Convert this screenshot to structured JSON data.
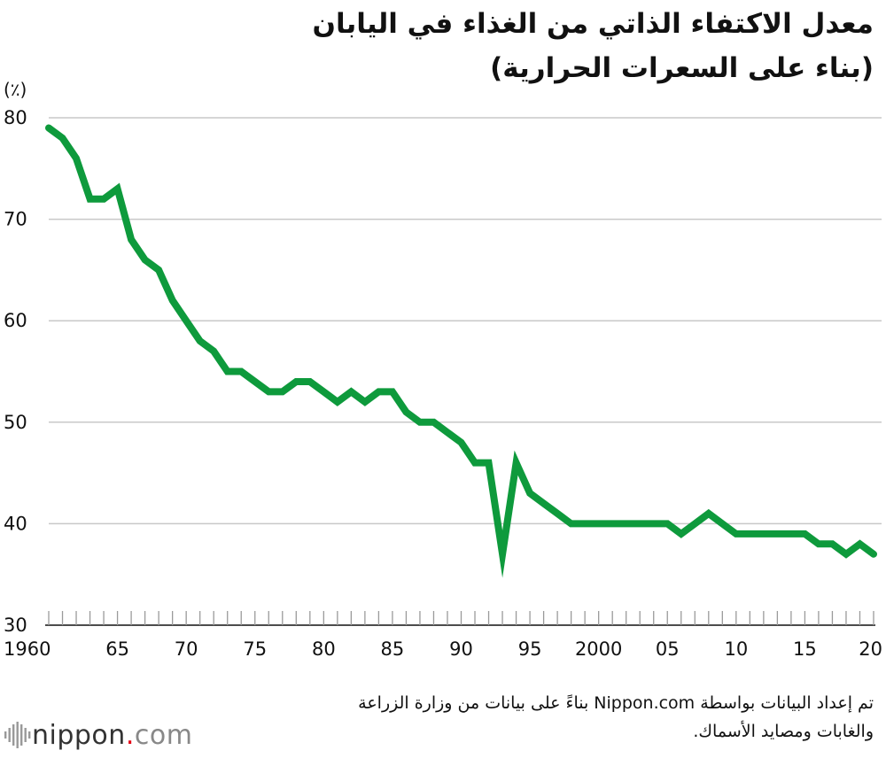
{
  "title": {
    "line1": "معدل الاكتفاء الذاتي من الغذاء في اليابان",
    "line2": "(بناء على السعرات الحرارية)"
  },
  "chart_data": {
    "type": "line",
    "unit_label": "(٪)",
    "ylim": [
      30,
      80
    ],
    "yticks": [
      30,
      40,
      50,
      60,
      70,
      80
    ],
    "xlim": [
      1960,
      2020
    ],
    "xtick_labels": [
      {
        "year": 1960,
        "label": "1960"
      },
      {
        "year": 1965,
        "label": "65"
      },
      {
        "year": 1970,
        "label": "70"
      },
      {
        "year": 1975,
        "label": "75"
      },
      {
        "year": 1980,
        "label": "80"
      },
      {
        "year": 1985,
        "label": "85"
      },
      {
        "year": 1990,
        "label": "90"
      },
      {
        "year": 1995,
        "label": "95"
      },
      {
        "year": 2000,
        "label": "2000"
      },
      {
        "year": 2005,
        "label": "05"
      },
      {
        "year": 2010,
        "label": "10"
      },
      {
        "year": 2015,
        "label": "15"
      },
      {
        "year": 2020,
        "label": "20"
      }
    ],
    "grid": true,
    "color": "#0e9a3c",
    "x": [
      1960,
      1961,
      1962,
      1963,
      1964,
      1965,
      1966,
      1967,
      1968,
      1969,
      1970,
      1971,
      1972,
      1973,
      1974,
      1975,
      1976,
      1977,
      1978,
      1979,
      1980,
      1981,
      1982,
      1983,
      1984,
      1985,
      1986,
      1987,
      1988,
      1989,
      1990,
      1991,
      1992,
      1993,
      1994,
      1995,
      1996,
      1997,
      1998,
      1999,
      2000,
      2001,
      2002,
      2003,
      2004,
      2005,
      2006,
      2007,
      2008,
      2009,
      2010,
      2011,
      2012,
      2013,
      2014,
      2015,
      2016,
      2017,
      2018,
      2019,
      2020
    ],
    "y": [
      79,
      78,
      76,
      72,
      72,
      73,
      68,
      66,
      65,
      62,
      60,
      58,
      57,
      55,
      55,
      54,
      53,
      53,
      54,
      54,
      53,
      52,
      53,
      52,
      53,
      53,
      51,
      50,
      50,
      49,
      48,
      46,
      46,
      37,
      46,
      43,
      42,
      41,
      40,
      40,
      40,
      40,
      40,
      40,
      40,
      40,
      39,
      40,
      41,
      40,
      39,
      39,
      39,
      39,
      39,
      39,
      38,
      38,
      37,
      38,
      37
    ]
  },
  "footer": {
    "line1": "تم إعداد البيانات بواسطة Nippon.com بناءً على بيانات من وزارة الزراعة",
    "line2": "والغابات ومصايد الأسماك."
  },
  "logo": {
    "main": "nippon",
    "dot": ".",
    "suffix": "com"
  }
}
